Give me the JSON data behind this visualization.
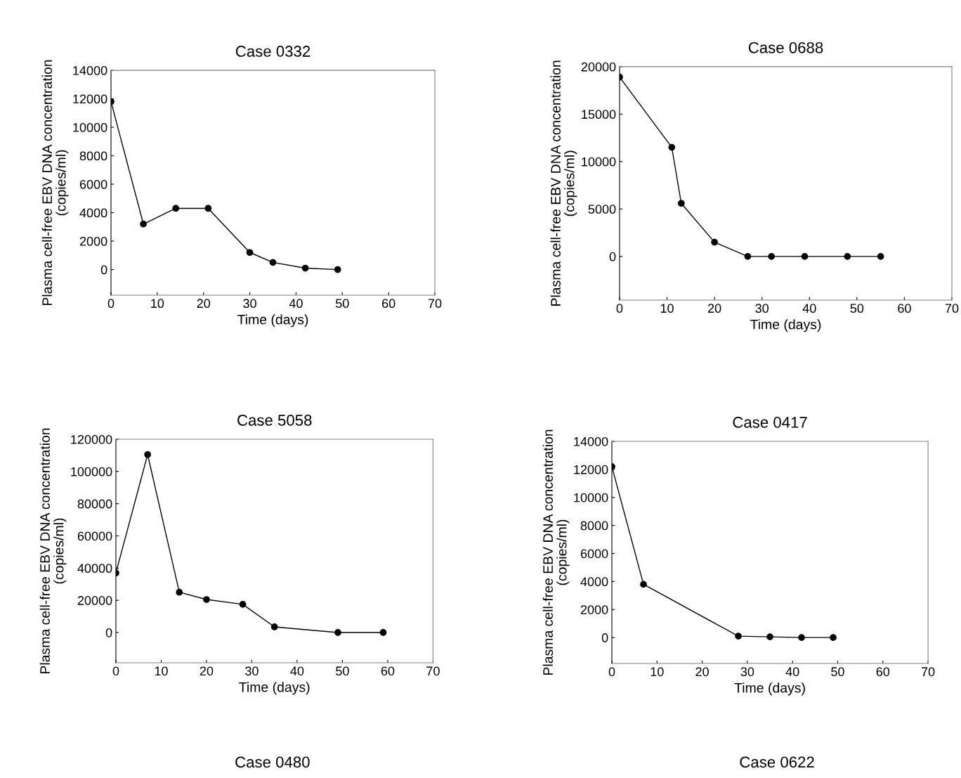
{
  "chart_data": [
    {
      "type": "line",
      "title": "Case 0332",
      "xlabel": "Time (days)",
      "ylabel": "Plasma cell-free EBV DNA concentration\n(copies/ml)",
      "x": [
        0,
        7,
        14,
        21,
        30,
        35,
        42,
        49
      ],
      "series": [
        {
          "color": "#000000",
          "values": [
            11800,
            3200,
            4300,
            4300,
            1200,
            500,
            100,
            0
          ]
        }
      ],
      "xlim": [
        0,
        70
      ],
      "xticks": [
        0,
        10,
        20,
        30,
        40,
        50,
        60,
        70
      ],
      "ylim": [
        -1800,
        14000
      ],
      "yticks": [
        0,
        2000,
        4000,
        6000,
        8000,
        10000,
        12000,
        14000
      ],
      "marker": "circle",
      "grid": false,
      "legend": false
    },
    {
      "type": "line",
      "title": "Case 0688",
      "xlabel": "Time (days)",
      "ylabel": "Plasma cell-free EBV DNA concentration\n(copies/ml)",
      "x": [
        0,
        11,
        13,
        20,
        27,
        32,
        39,
        48,
        55
      ],
      "series": [
        {
          "color": "#000000",
          "values": [
            18900,
            11500,
            5600,
            1500,
            0,
            0,
            0,
            0,
            0
          ]
        }
      ],
      "xlim": [
        0,
        70
      ],
      "xticks": [
        0,
        10,
        20,
        30,
        40,
        50,
        60,
        70
      ],
      "ylim": [
        -4600,
        20000
      ],
      "yticks": [
        0,
        5000,
        10000,
        15000,
        20000
      ],
      "marker": "circle",
      "grid": false,
      "legend": false
    },
    {
      "type": "line",
      "title": "Case 5058",
      "xlabel": "Time (days)",
      "ylabel": "Plasma cell-free EBV DNA concentration\n(copies/ml)",
      "x": [
        0,
        7,
        14,
        20,
        28,
        35,
        49,
        59
      ],
      "series": [
        {
          "color": "#000000",
          "values": [
            37000,
            110500,
            25000,
            20500,
            17500,
            3500,
            0,
            0
          ]
        }
      ],
      "xlim": [
        0,
        70
      ],
      "xticks": [
        0,
        10,
        20,
        30,
        40,
        50,
        60,
        70
      ],
      "ylim": [
        -18800,
        120000
      ],
      "yticks": [
        0,
        20000,
        40000,
        60000,
        80000,
        100000,
        120000
      ],
      "marker": "circle",
      "grid": false,
      "legend": false
    },
    {
      "type": "line",
      "title": "Case 0417",
      "xlabel": "Time (days)",
      "ylabel": "Plasma cell-free EBV DNA concentration\n(copies/ml)",
      "x": [
        0,
        7,
        28,
        35,
        42,
        49
      ],
      "series": [
        {
          "color": "#000000",
          "values": [
            12200,
            3800,
            100,
            50,
            0,
            0
          ]
        }
      ],
      "xlim": [
        0,
        70
      ],
      "xticks": [
        0,
        10,
        20,
        30,
        40,
        50,
        60,
        70
      ],
      "ylim": [
        -1850,
        14000
      ],
      "yticks": [
        0,
        2000,
        4000,
        6000,
        8000,
        10000,
        12000,
        14000
      ],
      "marker": "circle",
      "grid": false,
      "legend": false
    },
    {
      "type": "other",
      "title": "Case 0480"
    },
    {
      "type": "other",
      "title": "Case 0622"
    }
  ]
}
